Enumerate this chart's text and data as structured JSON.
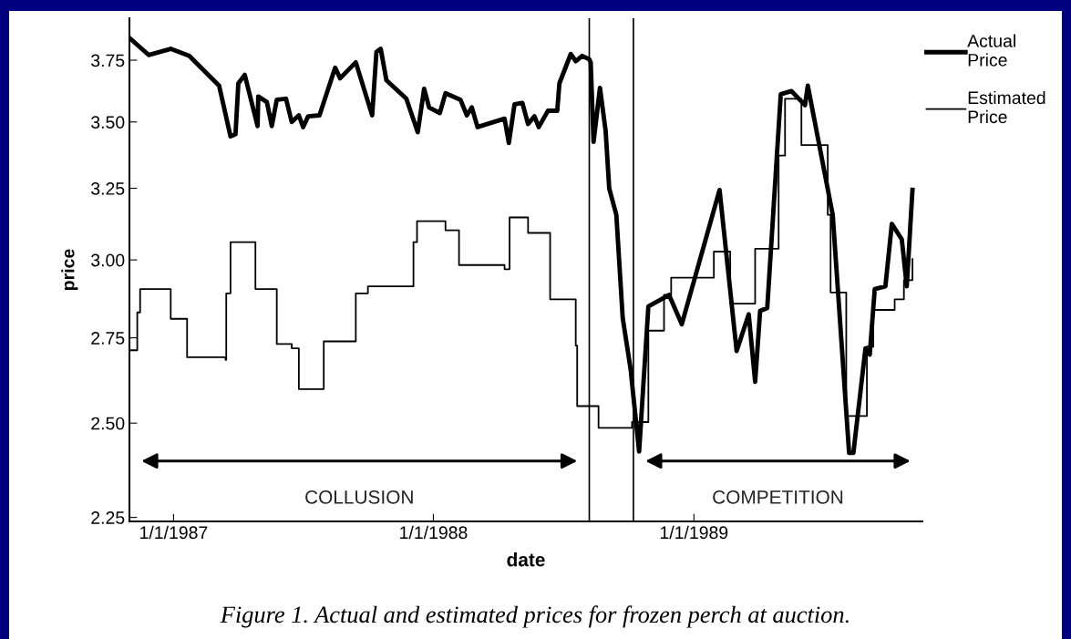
{
  "chart_data": {
    "type": "line",
    "xlabel": "date",
    "ylabel": "price",
    "log": true,
    "ylim": [
      2.24,
      3.93
    ],
    "yticks": [
      {
        "value": 2.25,
        "label": "2.25"
      },
      {
        "value": 2.5,
        "label": "2.50"
      },
      {
        "value": 2.75,
        "label": "2.75"
      },
      {
        "value": 3.0,
        "label": "3.00"
      },
      {
        "value": 3.25,
        "label": "3.25"
      },
      {
        "value": 3.5,
        "label": "3.50"
      },
      {
        "value": 3.75,
        "label": "3.75"
      }
    ],
    "xlim": [
      "1986-10-31",
      "1989-11-18"
    ],
    "xticks": [
      {
        "value": "1987-01-01",
        "label": "1/1/1987"
      },
      {
        "value": "1988-01-01",
        "label": "1/1/1988"
      },
      {
        "value": "1989-01-01",
        "label": "1/1/1989"
      }
    ],
    "grid": false,
    "legend": "top right",
    "marker": "none",
    "series": [
      {
        "name": "Actual Price",
        "color": "#000000",
        "x": [
          "1986-11-01",
          "1986-11-27",
          "1986-12-28",
          "1987-01-23",
          "1987-03-06",
          "1987-03-22",
          "1987-03-29",
          "1987-04-02",
          "1987-04-11",
          "1987-04-29",
          "1987-04-30",
          "1987-05-12",
          "1987-05-19",
          "1987-05-26",
          "1987-06-08",
          "1987-06-16",
          "1987-06-26",
          "1987-07-02",
          "1987-07-09",
          "1987-07-25",
          "1987-08-16",
          "1987-08-23",
          "1987-09-14",
          "1987-10-07",
          "1987-10-13",
          "1987-10-19",
          "1987-10-27",
          "1987-11-24",
          "1987-12-10",
          "1987-12-19",
          "1987-12-26",
          "1988-01-10",
          "1988-01-18",
          "1988-02-08",
          "1988-02-17",
          "1988-02-24",
          "1988-03-03",
          "1988-04-10",
          "1988-04-16",
          "1988-04-24",
          "1988-05-05",
          "1988-05-13",
          "1988-05-22",
          "1988-05-28",
          "1988-06-10",
          "1988-06-23",
          "1988-06-26",
          "1988-07-12",
          "1988-07-19",
          "1988-07-28",
          "1988-08-07",
          "1988-08-09",
          "1988-08-13",
          "1988-08-22",
          "1988-08-30",
          "1988-09-04",
          "1988-09-14",
          "1988-09-23",
          "1988-10-04",
          "1988-10-16",
          "1988-10-29",
          "1988-11-27",
          "1988-12-15",
          "1989-02-06",
          "1989-03-02",
          "1989-03-19",
          "1989-03-28",
          "1989-04-04",
          "1989-04-14",
          "1989-05-03",
          "1989-05-18",
          "1989-06-06",
          "1989-06-10",
          "1989-07-15",
          "1989-08-07",
          "1989-08-13",
          "1989-08-30",
          "1989-09-05",
          "1989-09-12",
          "1989-09-27",
          "1989-10-06",
          "1989-10-20",
          "1989-10-27",
          "1989-11-04"
        ],
        "values": [
          3.842,
          3.772,
          3.798,
          3.768,
          3.645,
          3.444,
          3.452,
          3.654,
          3.689,
          3.484,
          3.601,
          3.579,
          3.484,
          3.588,
          3.592,
          3.5,
          3.526,
          3.48,
          3.522,
          3.526,
          3.719,
          3.675,
          3.741,
          3.526,
          3.785,
          3.798,
          3.667,
          3.592,
          3.46,
          3.632,
          3.557,
          3.535,
          3.614,
          3.588,
          3.526,
          3.557,
          3.48,
          3.513,
          3.419,
          3.57,
          3.575,
          3.492,
          3.522,
          3.48,
          3.544,
          3.544,
          3.654,
          3.776,
          3.746,
          3.768,
          3.754,
          3.741,
          3.423,
          3.636,
          3.464,
          3.25,
          3.155,
          2.811,
          2.656,
          2.422,
          2.848,
          2.885,
          2.792,
          3.244,
          2.71,
          2.823,
          2.618,
          2.834,
          2.843,
          3.61,
          3.623,
          3.566,
          3.645,
          3.155,
          2.418,
          2.418,
          2.718,
          2.699,
          2.904,
          2.913,
          3.123,
          3.07,
          2.913,
          3.244
        ]
      },
      {
        "name": "Estimated Price",
        "color": "#000000",
        "type": "step",
        "x": [
          "1986-11-01",
          "1986-11-11",
          "1986-11-15",
          "1986-12-28",
          "1987-01-20",
          "1987-03-15",
          "1987-03-16",
          "1987-03-22",
          "1987-04-26",
          "1987-05-26",
          "1987-06-16",
          "1987-06-26",
          "1987-07-31",
          "1987-09-14",
          "1987-10-01",
          "1987-12-04",
          "1987-12-09",
          "1988-01-18",
          "1988-02-06",
          "1988-04-10",
          "1988-04-17",
          "1988-05-13",
          "1988-06-13",
          "1988-07-19",
          "1988-07-21",
          "1988-08-20",
          "1988-10-06",
          "1988-10-29",
          "1988-11-20",
          "1988-11-30",
          "1989-01-29",
          "1989-02-21",
          "1989-03-28",
          "1989-04-30",
          "1989-05-09",
          "1989-06-01",
          "1989-07-08",
          "1989-07-12",
          "1989-08-03",
          "1989-09-01",
          "1989-09-10",
          "1989-10-10",
          "1989-10-23",
          "1989-11-04"
        ],
        "values": [
          2.712,
          2.829,
          2.904,
          2.809,
          2.691,
          2.683,
          2.89,
          3.06,
          2.904,
          2.731,
          2.718,
          2.597,
          2.739,
          2.89,
          2.913,
          3.06,
          3.133,
          3.101,
          2.983,
          2.969,
          3.146,
          3.092,
          2.871,
          2.726,
          2.548,
          2.487,
          2.503,
          2.772,
          2.885,
          2.941,
          3.028,
          2.857,
          3.038,
          3.371,
          3.592,
          3.411,
          3.155,
          2.893,
          2.52,
          2.723,
          2.837,
          2.871,
          2.933,
          3.003
        ]
      }
    ],
    "ref_lines": [
      {
        "axis": "x",
        "value": "1988-08-07",
        "color": "#000000"
      },
      {
        "axis": "x",
        "value": "1988-10-08",
        "color": "#000000"
      }
    ],
    "annotations": [
      "COLLUSION",
      "COMPETITION",
      "Figure 1. Actual and estimated prices for frozen perch at auction."
    ]
  }
}
